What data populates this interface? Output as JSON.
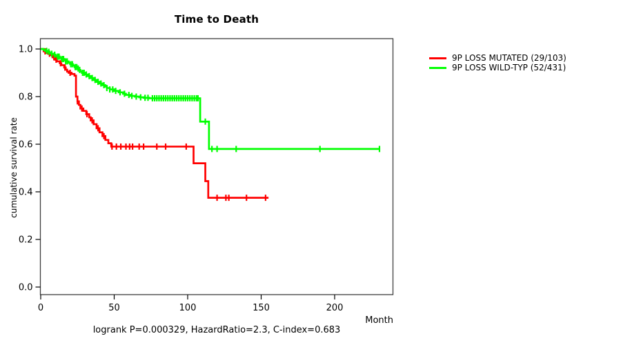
{
  "figure": {
    "title": "Time to Death",
    "footer": "logrank P=0.000329, HazardRatio=2.3, C-index=0.683"
  },
  "chart_data": {
    "type": "line",
    "subtype": "kaplan-meier-step",
    "title": "Time to Death",
    "xlabel": "Month",
    "ylabel": "cumulative survival rate",
    "xlim": [
      0,
      240
    ],
    "ylim": [
      0.0,
      1.0
    ],
    "xticks": [
      0,
      50,
      100,
      150,
      200
    ],
    "yticks": [
      1.0,
      0.8,
      0.6,
      0.4,
      0.2,
      0.0
    ],
    "grid": false,
    "legend_position": "right-outside",
    "annotation": "logrank P=0.000329, HazardRatio=2.3, C-index=0.683",
    "series": [
      {
        "name": "9P LOSS MUTATED (29/103)",
        "color": "#ff0000",
        "start_survival": 1.0,
        "end_month": 155,
        "steps": [
          [
            2,
            0.99
          ],
          [
            4,
            0.985
          ],
          [
            5,
            0.98
          ],
          [
            7,
            0.975
          ],
          [
            8,
            0.965
          ],
          [
            10,
            0.955
          ],
          [
            11,
            0.948
          ],
          [
            13,
            0.94
          ],
          [
            14,
            0.932
          ],
          [
            16,
            0.922
          ],
          [
            17,
            0.913
          ],
          [
            18,
            0.905
          ],
          [
            19,
            0.9
          ],
          [
            21,
            0.895
          ],
          [
            23,
            0.888
          ],
          [
            24,
            0.8
          ],
          [
            25,
            0.78
          ],
          [
            26,
            0.765
          ],
          [
            27,
            0.75
          ],
          [
            29,
            0.74
          ],
          [
            31,
            0.726
          ],
          [
            33,
            0.713
          ],
          [
            34,
            0.7
          ],
          [
            36,
            0.684
          ],
          [
            38,
            0.667
          ],
          [
            40,
            0.65
          ],
          [
            42,
            0.634
          ],
          [
            44,
            0.618
          ],
          [
            46,
            0.604
          ],
          [
            48,
            0.59
          ],
          [
            104,
            0.52
          ],
          [
            112,
            0.445
          ],
          [
            114,
            0.375
          ]
        ],
        "censor_months": [
          3,
          6,
          9,
          10.5,
          13.5,
          16.5,
          20,
          25,
          28,
          31.5,
          35,
          39,
          43,
          48.5,
          51.5,
          54.5,
          58,
          60.5,
          62.5,
          67,
          70,
          79,
          85,
          99,
          120,
          126,
          128,
          140,
          153
        ]
      },
      {
        "name": "9P LOSS WILD-TYP (52/431)",
        "color": "#00ff00",
        "start_survival": 1.0,
        "end_month": 231,
        "steps": [
          [
            2,
            0.996
          ],
          [
            3,
            0.992
          ],
          [
            5,
            0.988
          ],
          [
            6,
            0.984
          ],
          [
            7,
            0.98
          ],
          [
            9,
            0.976
          ],
          [
            10,
            0.972
          ],
          [
            11,
            0.968
          ],
          [
            13,
            0.963
          ],
          [
            14,
            0.958
          ],
          [
            16,
            0.953
          ],
          [
            17,
            0.948
          ],
          [
            19,
            0.942
          ],
          [
            20,
            0.936
          ],
          [
            22,
            0.93
          ],
          [
            23,
            0.924
          ],
          [
            25,
            0.918
          ],
          [
            26,
            0.912
          ],
          [
            27,
            0.906
          ],
          [
            28,
            0.9
          ],
          [
            30,
            0.893
          ],
          [
            32,
            0.886
          ],
          [
            34,
            0.878
          ],
          [
            36,
            0.87
          ],
          [
            38,
            0.862
          ],
          [
            40,
            0.855
          ],
          [
            42,
            0.848
          ],
          [
            44,
            0.842
          ],
          [
            45,
            0.836
          ],
          [
            47,
            0.83
          ],
          [
            50,
            0.824
          ],
          [
            53,
            0.818
          ],
          [
            56,
            0.812
          ],
          [
            58,
            0.807
          ],
          [
            61,
            0.803
          ],
          [
            64,
            0.8
          ],
          [
            67,
            0.797
          ],
          [
            70,
            0.795
          ],
          [
            74,
            0.793
          ],
          [
            108.5,
            0.695
          ],
          [
            114.5,
            0.58
          ]
        ],
        "censor_months": [
          4,
          5.5,
          7.5,
          9.5,
          11.5,
          12.5,
          14.5,
          15.5,
          17,
          18,
          20.5,
          21.5,
          23.5,
          24.5,
          25.5,
          26.5,
          28.5,
          29.5,
          31,
          33,
          35,
          37,
          39,
          41,
          43,
          45,
          47,
          49,
          51,
          54,
          57,
          60,
          62,
          65,
          68,
          71,
          73,
          76,
          77.5,
          79,
          80.5,
          82,
          83.5,
          85,
          86.5,
          88,
          89.5,
          91,
          92.5,
          94,
          95.5,
          97,
          98.5,
          100,
          101.5,
          103,
          104.5,
          106,
          107,
          112,
          116.5,
          120,
          133,
          190,
          230.5
        ]
      }
    ]
  }
}
